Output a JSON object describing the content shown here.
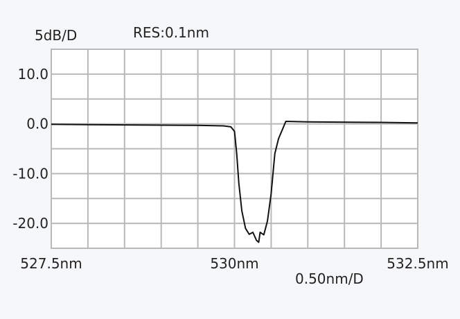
{
  "chart_data": {
    "type": "line",
    "y_scale_label": "5dB/D",
    "resolution_label": "RES:0.1nm",
    "x_scale_label": "0.50nm/D",
    "xlim": [
      527.5,
      532.5
    ],
    "ylim": [
      -25,
      15
    ],
    "x_ticks": [
      {
        "value": 527.5,
        "label": "527.5nm"
      },
      {
        "value": 530.0,
        "label": "530nm"
      },
      {
        "value": 532.5,
        "label": "532.5nm"
      }
    ],
    "y_ticks": [
      {
        "value": 10,
        "label": "10.0"
      },
      {
        "value": 0,
        "label": "0.0"
      },
      {
        "value": -10,
        "label": "-10.0"
      },
      {
        "value": -20,
        "label": "-20.0"
      }
    ],
    "grid": true,
    "line_color": "#111111",
    "grid_color": "#b8b8b8",
    "series": [
      {
        "x": [
          527.5,
          528.5,
          529.5,
          529.85,
          529.95,
          530.0,
          530.03,
          530.06,
          530.1,
          530.15,
          530.2,
          530.25,
          530.3,
          530.33,
          530.35,
          530.4,
          530.45,
          530.5,
          530.55,
          530.6,
          530.7,
          531.0,
          532.0,
          532.5
        ],
        "y": [
          -0.1,
          -0.2,
          -0.3,
          -0.4,
          -0.6,
          -1.5,
          -6,
          -12,
          -17.5,
          -21,
          -22.2,
          -21.8,
          -23.4,
          -23.8,
          -21.8,
          -22.3,
          -19.5,
          -14,
          -6,
          -3,
          0.5,
          0.4,
          0.3,
          0.2
        ]
      }
    ]
  }
}
